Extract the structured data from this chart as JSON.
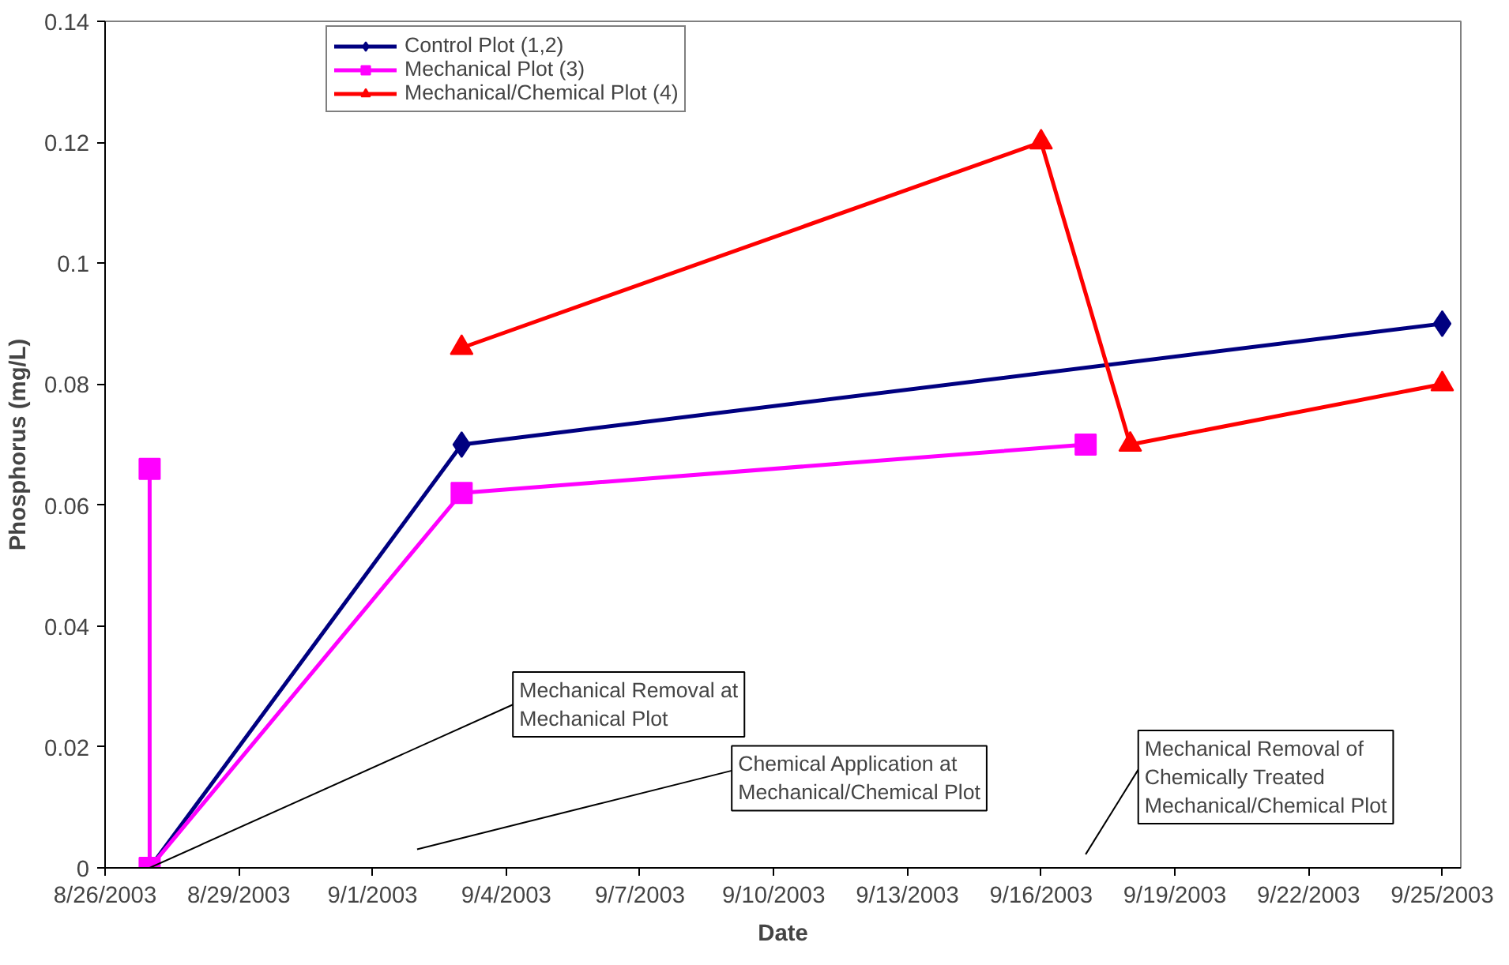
{
  "chart_data": {
    "type": "line",
    "xlabel": "Date",
    "ylabel": "Phosphorus (mg/L)",
    "xlim": [
      "2003-08-26",
      "2003-09-25T10:00"
    ],
    "xticks": [
      {
        "value": "2003-08-26",
        "label": "8/26/2003"
      },
      {
        "value": "2003-08-29",
        "label": "8/29/2003"
      },
      {
        "value": "2003-09-01",
        "label": "9/1/2003"
      },
      {
        "value": "2003-09-04",
        "label": "9/4/2003"
      },
      {
        "value": "2003-09-07",
        "label": "9/7/2003"
      },
      {
        "value": "2003-09-10",
        "label": "9/10/2003"
      },
      {
        "value": "2003-09-13",
        "label": "9/13/2003"
      },
      {
        "value": "2003-09-16",
        "label": "9/16/2003"
      },
      {
        "value": "2003-09-19",
        "label": "9/19/2003"
      },
      {
        "value": "2003-09-22",
        "label": "9/22/2003"
      },
      {
        "value": "2003-09-25",
        "label": "9/25/2003"
      }
    ],
    "ylim": [
      0,
      0.14
    ],
    "yticks": [
      0,
      0.02,
      0.04,
      0.06,
      0.08,
      0.1,
      0.12,
      0.14
    ],
    "grid": false,
    "legend": "top left",
    "line_style": "solid",
    "series": [
      {
        "name": "Control Plot (1,2)",
        "color": "#000080",
        "marker": "diamond",
        "x": [
          "2003-08-27",
          "2003-09-03",
          "2003-09-25"
        ],
        "values": [
          0,
          0.07,
          0.09
        ]
      },
      {
        "name": "Mechanical Plot (3)",
        "color": "#ff00ff",
        "marker": "square",
        "x": [
          "2003-08-27",
          "2003-08-27",
          "2003-09-03",
          "2003-09-17"
        ],
        "values": [
          0.066,
          0,
          0.062,
          0.07
        ]
      },
      {
        "name": "Mechanical/Chemical Plot (4)",
        "color": "#ff0000",
        "marker": "triangle",
        "x": [
          "2003-09-03",
          "2003-09-16",
          "2003-09-18",
          "2003-09-25"
        ],
        "values": [
          0.086,
          0.12,
          0.07,
          0.08
        ]
      }
    ],
    "annotations": [
      {
        "text": "Mechanical Removal at Mechanical Plot",
        "x": "2003-08-27",
        "y": 0.0
      },
      "Chemical Application at Mechanical/Chemical Plot",
      "Mechanical Removal of Chemically Treated Mechanical/Chemical Plot"
    ]
  }
}
